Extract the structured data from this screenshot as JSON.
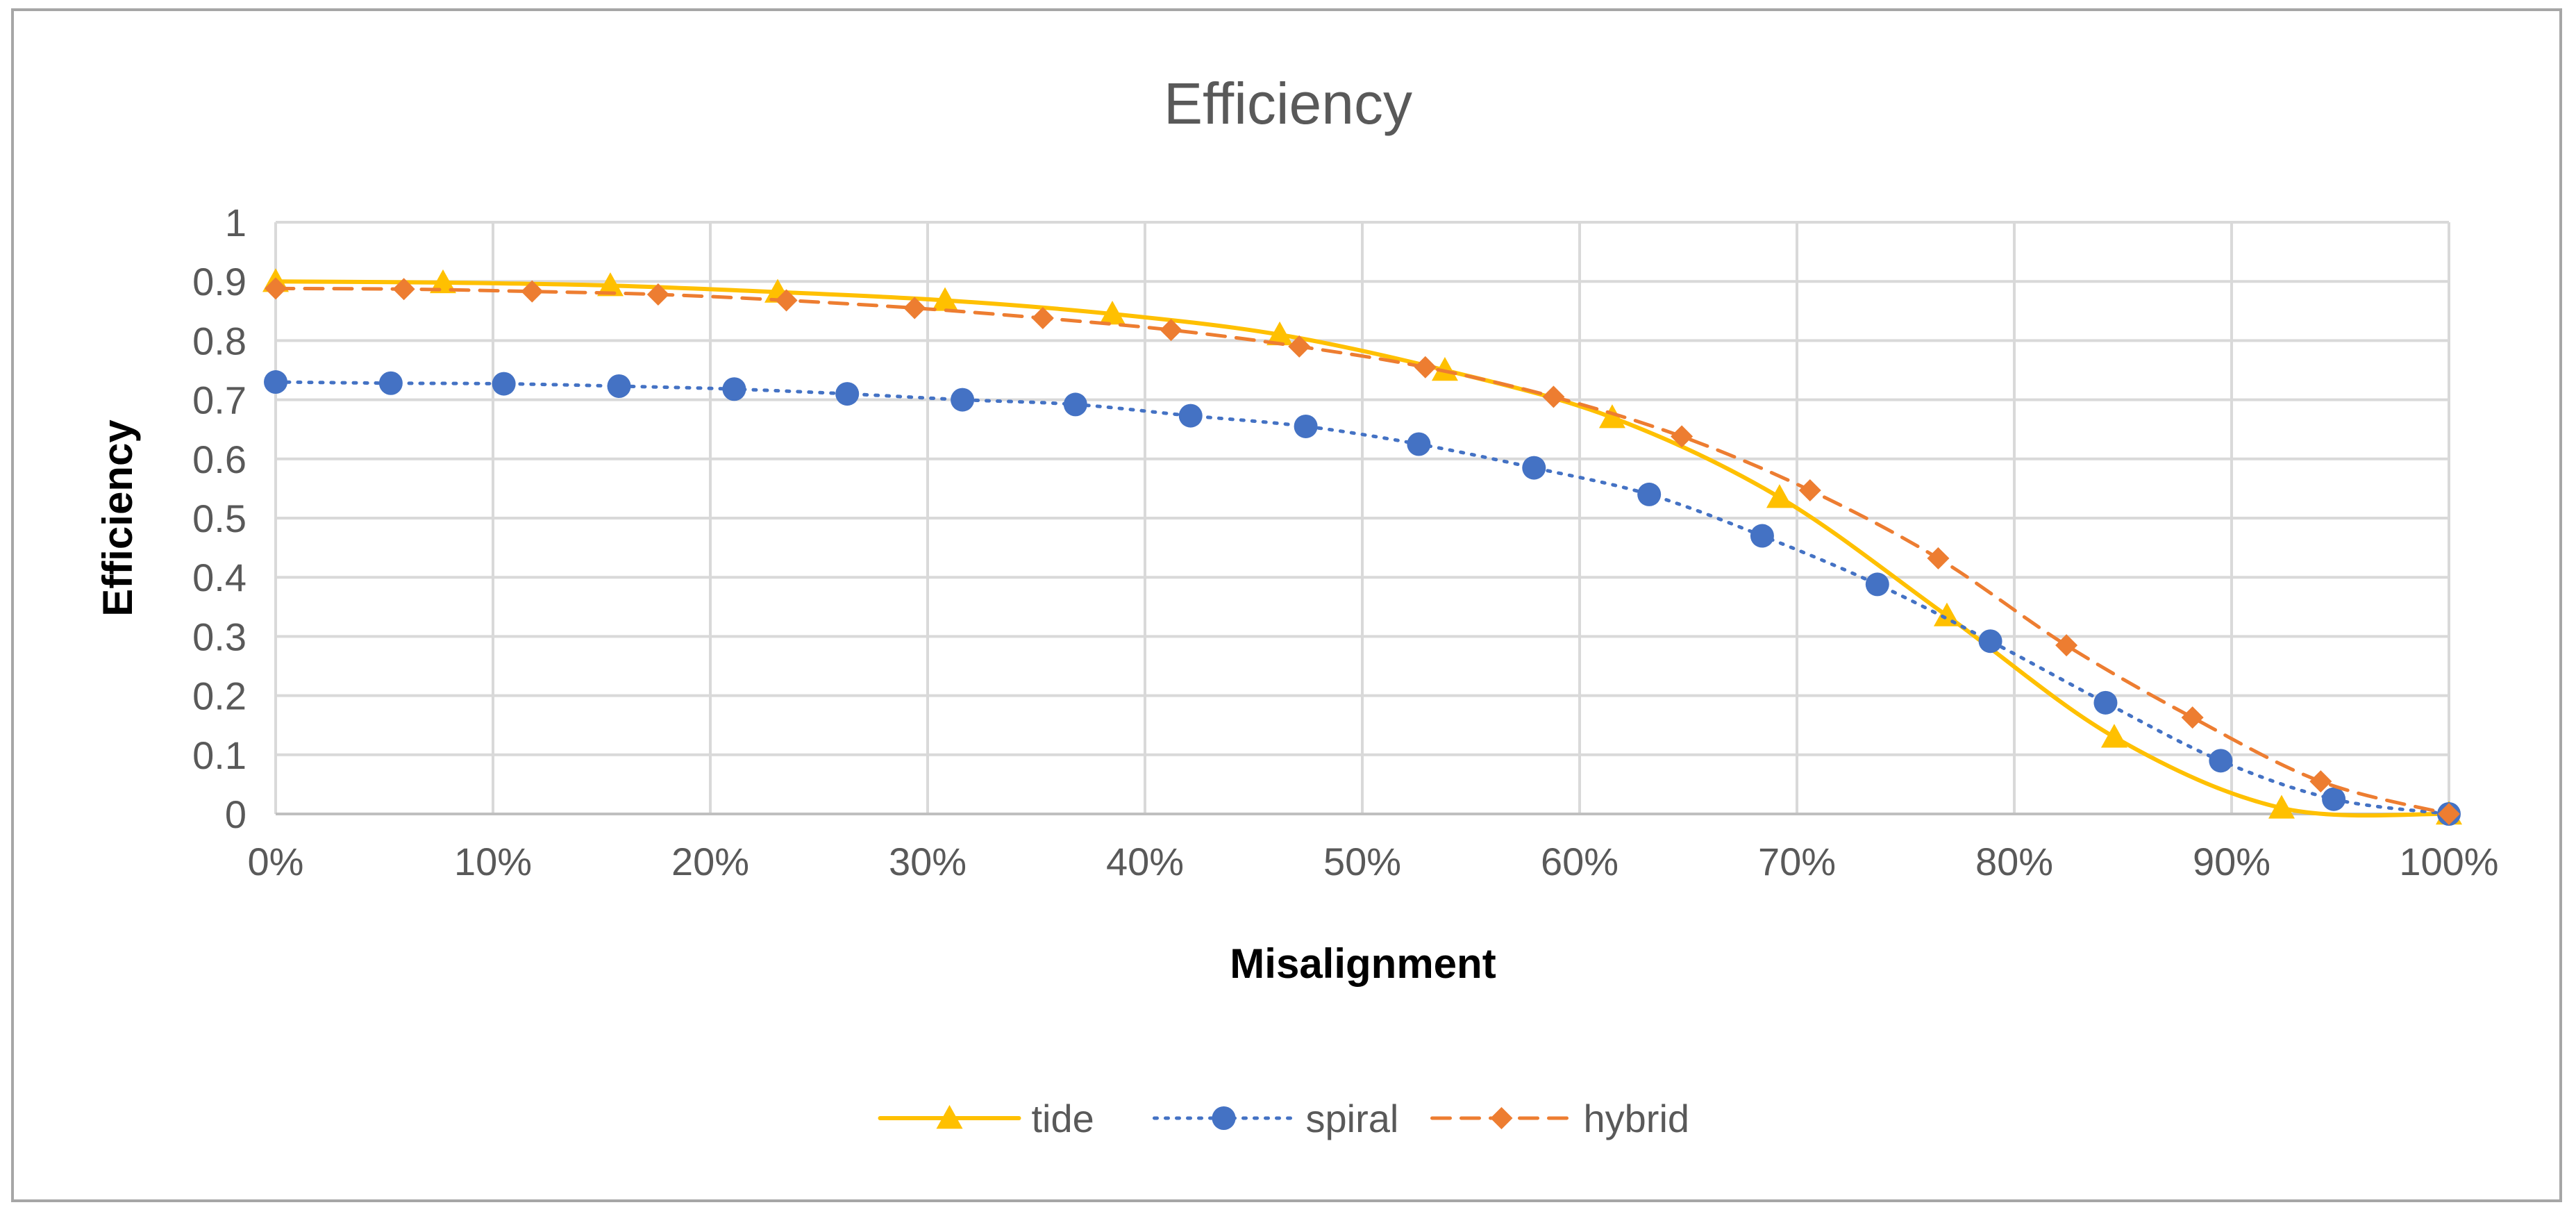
{
  "chart_data": {
    "type": "line",
    "title": "Efficiency",
    "xlabel": "Misalignment",
    "ylabel": "Efficiency",
    "xlim": [
      0,
      100
    ],
    "ylim": [
      0,
      1
    ],
    "x_ticks": [
      "0%",
      "10%",
      "20%",
      "30%",
      "40%",
      "50%",
      "60%",
      "70%",
      "80%",
      "90%",
      "100%"
    ],
    "y_ticks": [
      "0",
      "0.1",
      "0.2",
      "0.3",
      "0.4",
      "0.5",
      "0.6",
      "0.7",
      "0.8",
      "0.9",
      "1"
    ],
    "grid": true,
    "legend_position": "bottom",
    "series": [
      {
        "name": "tide",
        "color": "#FFC000",
        "line_style": "solid",
        "marker": "triangle",
        "x": [
          0,
          7.7,
          15.4,
          23.1,
          30.8,
          38.5,
          46.2,
          53.8,
          61.5,
          69.2,
          76.9,
          84.6,
          92.3,
          100
        ],
        "y": [
          0.9,
          0.898,
          0.893,
          0.882,
          0.868,
          0.845,
          0.81,
          0.75,
          0.67,
          0.535,
          0.335,
          0.13,
          0.01,
          0.0
        ]
      },
      {
        "name": "spiral",
        "color": "#4472C4",
        "line_style": "dotted",
        "marker": "circle",
        "x": [
          0,
          5.3,
          10.5,
          15.8,
          21.1,
          26.3,
          31.6,
          36.8,
          42.1,
          47.4,
          52.6,
          57.9,
          63.2,
          68.4,
          73.7,
          78.9,
          84.2,
          89.5,
          94.7,
          100
        ],
        "y": [
          0.73,
          0.728,
          0.727,
          0.723,
          0.718,
          0.71,
          0.7,
          0.692,
          0.673,
          0.655,
          0.625,
          0.585,
          0.54,
          0.47,
          0.388,
          0.292,
          0.188,
          0.09,
          0.025,
          0.0
        ]
      },
      {
        "name": "hybrid",
        "color": "#ED7D31",
        "line_style": "dashed",
        "marker": "diamond",
        "x": [
          0,
          5.9,
          11.8,
          17.6,
          23.5,
          29.4,
          35.3,
          41.2,
          47.1,
          52.9,
          58.8,
          64.7,
          70.6,
          76.5,
          82.4,
          88.2,
          94.1,
          100
        ],
        "y": [
          0.888,
          0.887,
          0.883,
          0.878,
          0.868,
          0.855,
          0.838,
          0.818,
          0.79,
          0.755,
          0.705,
          0.638,
          0.547,
          0.432,
          0.285,
          0.163,
          0.055,
          0.0
        ]
      }
    ]
  }
}
